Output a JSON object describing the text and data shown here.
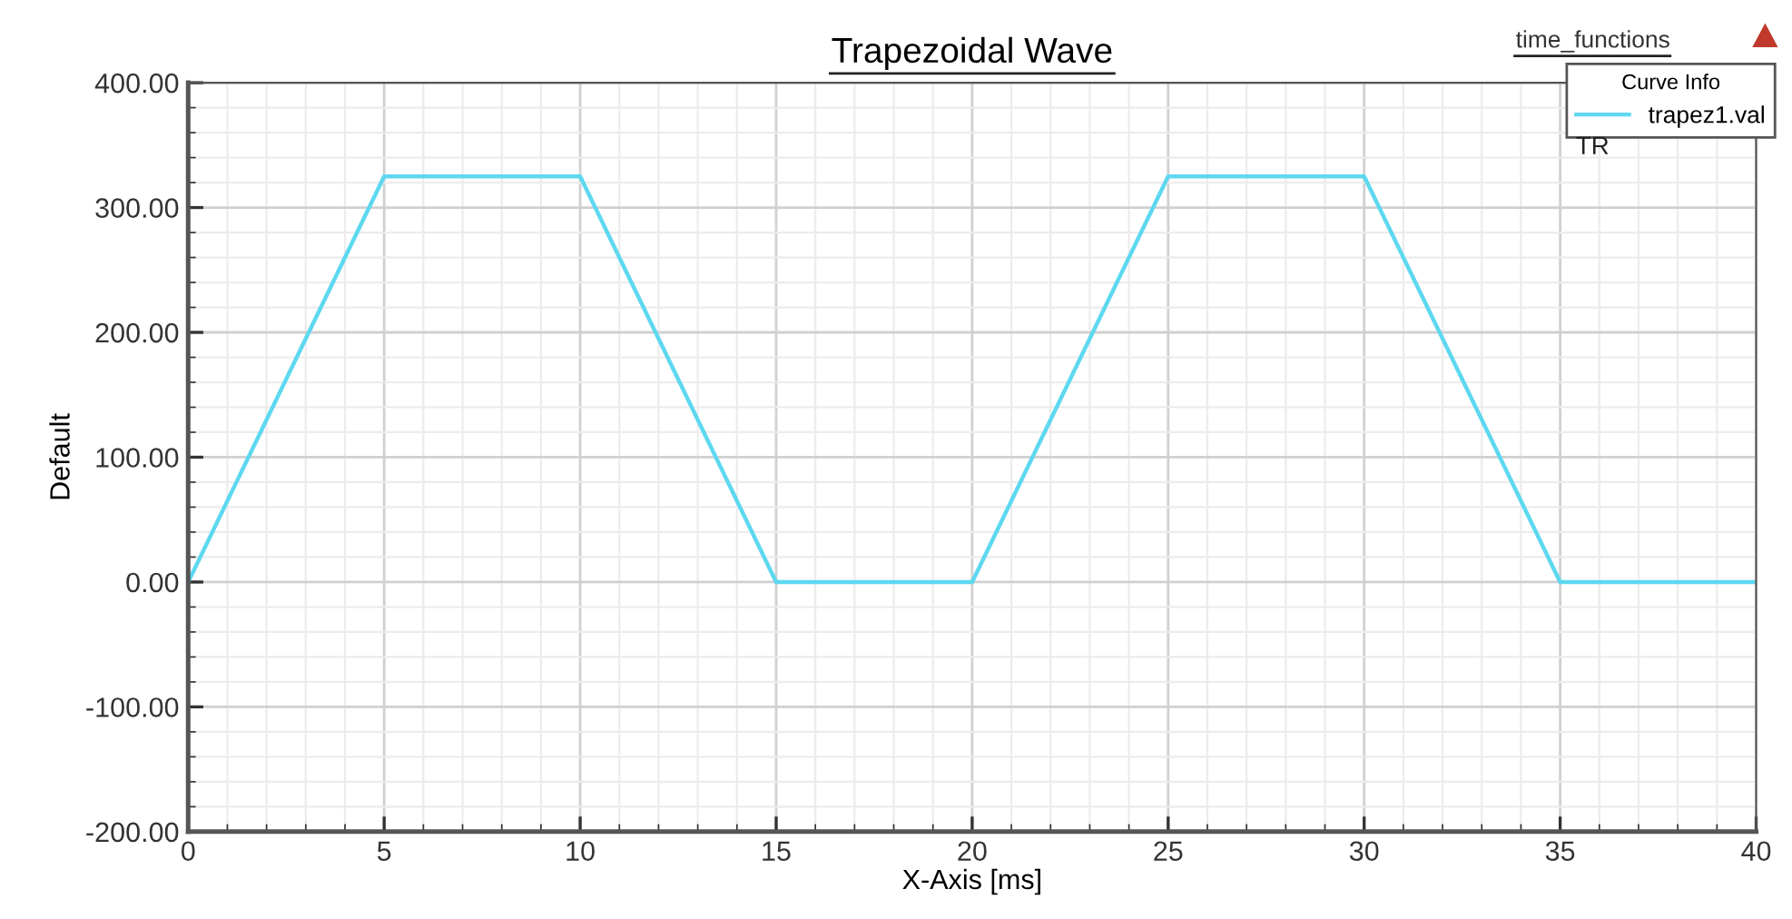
{
  "chart_data": {
    "type": "line",
    "title": "Trapezoidal Wave",
    "xlabel": "X-Axis [ms]",
    "ylabel": "Default",
    "legend_title": "Curve Info",
    "annotations": [
      "time_functions",
      "TR"
    ],
    "x": [
      0,
      5,
      10,
      15,
      20,
      25,
      30,
      35,
      40
    ],
    "series": [
      {
        "name": "trapez1.val",
        "color": "#5ed8f0",
        "values": [
          0,
          325,
          325,
          0,
          0,
          325,
          325,
          0,
          0
        ]
      }
    ],
    "xlim": [
      0,
      40
    ],
    "xticks": [
      0,
      5,
      10,
      15,
      20,
      25,
      30,
      35,
      40
    ],
    "ylim": [
      -200,
      400
    ],
    "yticks": [
      {
        "value": -200,
        "label": "-200.00"
      },
      {
        "value": -100,
        "label": "-100.00"
      },
      {
        "value": 0,
        "label": "0.00"
      },
      {
        "value": 100,
        "label": "100.00"
      },
      {
        "value": 200,
        "label": "200.00"
      },
      {
        "value": 300,
        "label": "300.00"
      },
      {
        "value": 400,
        "label": "400.00"
      }
    ],
    "grid": true,
    "legend": "top right",
    "marker": "none",
    "line_style": "solid"
  }
}
